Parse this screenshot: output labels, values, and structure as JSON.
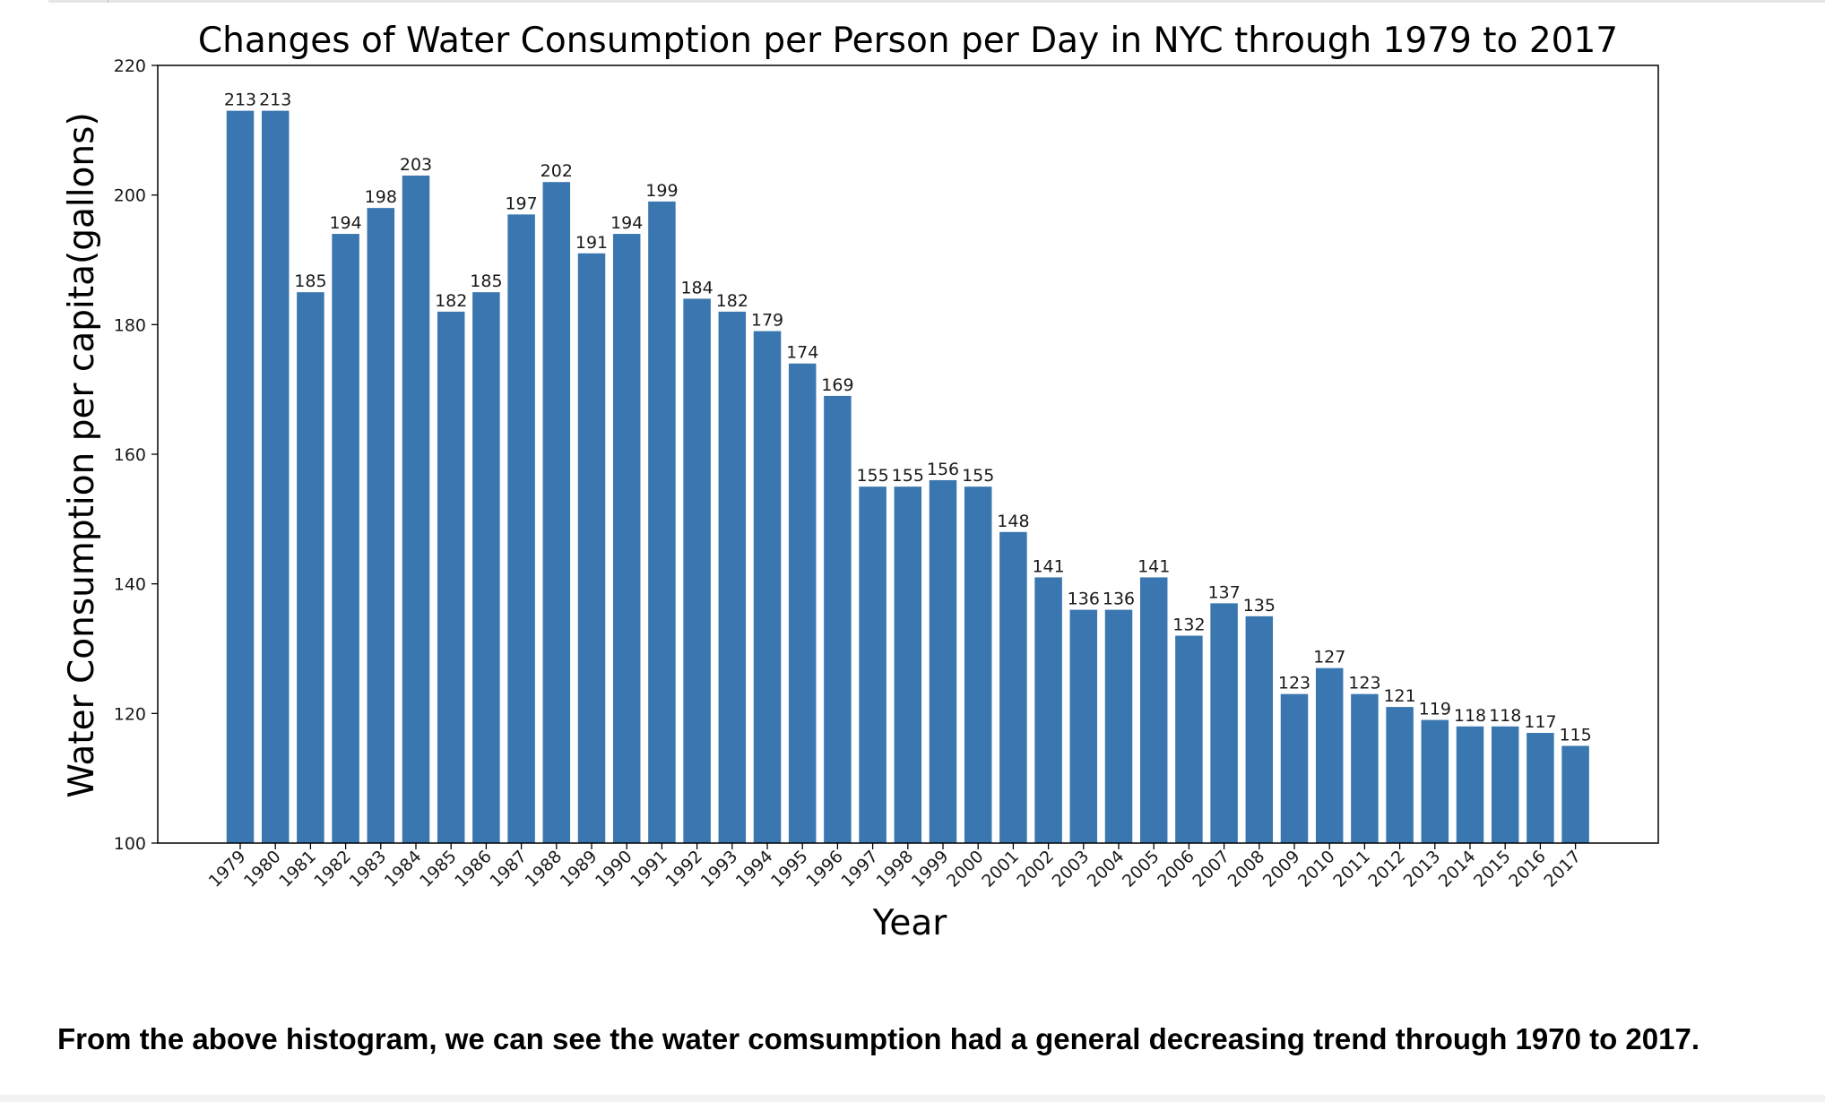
{
  "chart_data": {
    "type": "bar",
    "title": "Changes of Water Consumption per Person per Day in NYC through 1979 to 2017",
    "xlabel": "Year",
    "ylabel": "Water Consumption per capita(gallons)",
    "ylim": [
      100,
      220
    ],
    "yticks": [
      100,
      120,
      140,
      160,
      180,
      200,
      220
    ],
    "grid": false,
    "legend": "none",
    "bar_color": "#3a76af",
    "categories": [
      "1979",
      "1980",
      "1981",
      "1982",
      "1983",
      "1984",
      "1985",
      "1986",
      "1987",
      "1988",
      "1989",
      "1990",
      "1991",
      "1992",
      "1993",
      "1994",
      "1995",
      "1996",
      "1997",
      "1998",
      "1999",
      "2000",
      "2001",
      "2002",
      "2003",
      "2004",
      "2005",
      "2006",
      "2007",
      "2008",
      "2009",
      "2010",
      "2011",
      "2012",
      "2013",
      "2014",
      "2015",
      "2016",
      "2017"
    ],
    "values": [
      213,
      213,
      185,
      194,
      198,
      203,
      182,
      185,
      197,
      202,
      191,
      194,
      199,
      184,
      182,
      179,
      174,
      169,
      155,
      155,
      156,
      155,
      148,
      141,
      136,
      136,
      141,
      132,
      137,
      135,
      123,
      127,
      123,
      121,
      119,
      118,
      118,
      117,
      115
    ]
  },
  "caption": {
    "text": "From the above histogram, we can see the water comsumption had a general decreasing trend through 1970 to 2017."
  }
}
